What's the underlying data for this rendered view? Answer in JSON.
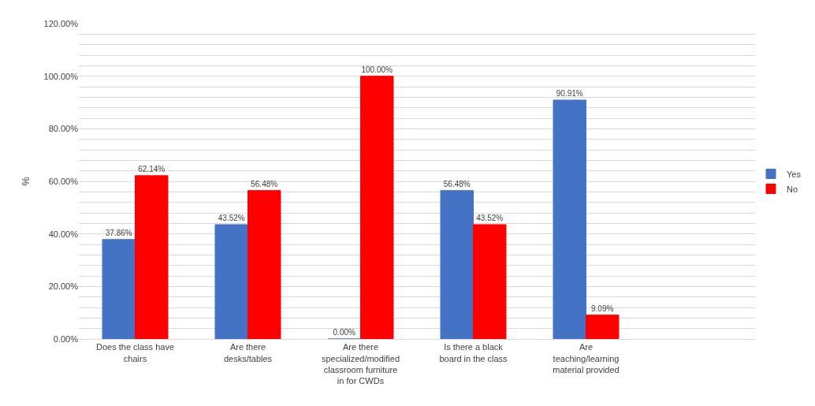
{
  "chart_data": {
    "type": "bar",
    "ylabel": "%",
    "categories": [
      "Does the class have chairs",
      "Are there desks/tables",
      "Are there specialized/modified classroom furniture in for CWDs",
      "Is there a black board in the class",
      "Are teaching/learning material provided",
      null
    ],
    "series": [
      {
        "name": "Yes",
        "color": "#4472c4",
        "values": [
          37.86,
          43.52,
          0,
          56.48,
          90.91,
          null
        ],
        "value_labels": [
          "37.86%",
          "43.52%",
          "0.00%",
          "56.48%",
          "90.91%",
          null
        ]
      },
      {
        "name": "No",
        "color": "#ff0000",
        "values": [
          62.14,
          56.48,
          100,
          43.52,
          9.09,
          null
        ],
        "value_labels": [
          "62.14%",
          "56.48%",
          "100.00%",
          "43.52%",
          "9.09%",
          null
        ]
      }
    ],
    "ylim": [
      0,
      120
    ],
    "yticks": [
      {
        "value": 0,
        "label": "0.00%"
      },
      {
        "value": 4,
        "label": null
      },
      {
        "value": 8,
        "label": null
      },
      {
        "value": 12,
        "label": null
      },
      {
        "value": 16,
        "label": null
      },
      {
        "value": 20,
        "label": "20.00%"
      },
      {
        "value": 24,
        "label": null
      },
      {
        "value": 28,
        "label": null
      },
      {
        "value": 32,
        "label": null
      },
      {
        "value": 36,
        "label": null
      },
      {
        "value": 40,
        "label": "40.00%"
      },
      {
        "value": 44,
        "label": null
      },
      {
        "value": 48,
        "label": null
      },
      {
        "value": 52,
        "label": null
      },
      {
        "value": 56,
        "label": null
      },
      {
        "value": 60,
        "label": "60.00%"
      },
      {
        "value": 64,
        "label": null
      },
      {
        "value": 68,
        "label": null
      },
      {
        "value": 72,
        "label": null
      },
      {
        "value": 76,
        "label": null
      },
      {
        "value": 80,
        "label": "80.00%"
      },
      {
        "value": 84,
        "label": null
      },
      {
        "value": 88,
        "label": null
      },
      {
        "value": 92,
        "label": null
      },
      {
        "value": 96,
        "label": null
      },
      {
        "value": 100,
        "label": "100.00%"
      },
      {
        "value": 104,
        "label": null
      },
      {
        "value": 108,
        "label": null
      },
      {
        "value": 112,
        "label": null
      },
      {
        "value": 116,
        "label": null
      },
      {
        "value": 120,
        "label": "120.00%"
      }
    ],
    "grid": "y",
    "legend": "right"
  }
}
